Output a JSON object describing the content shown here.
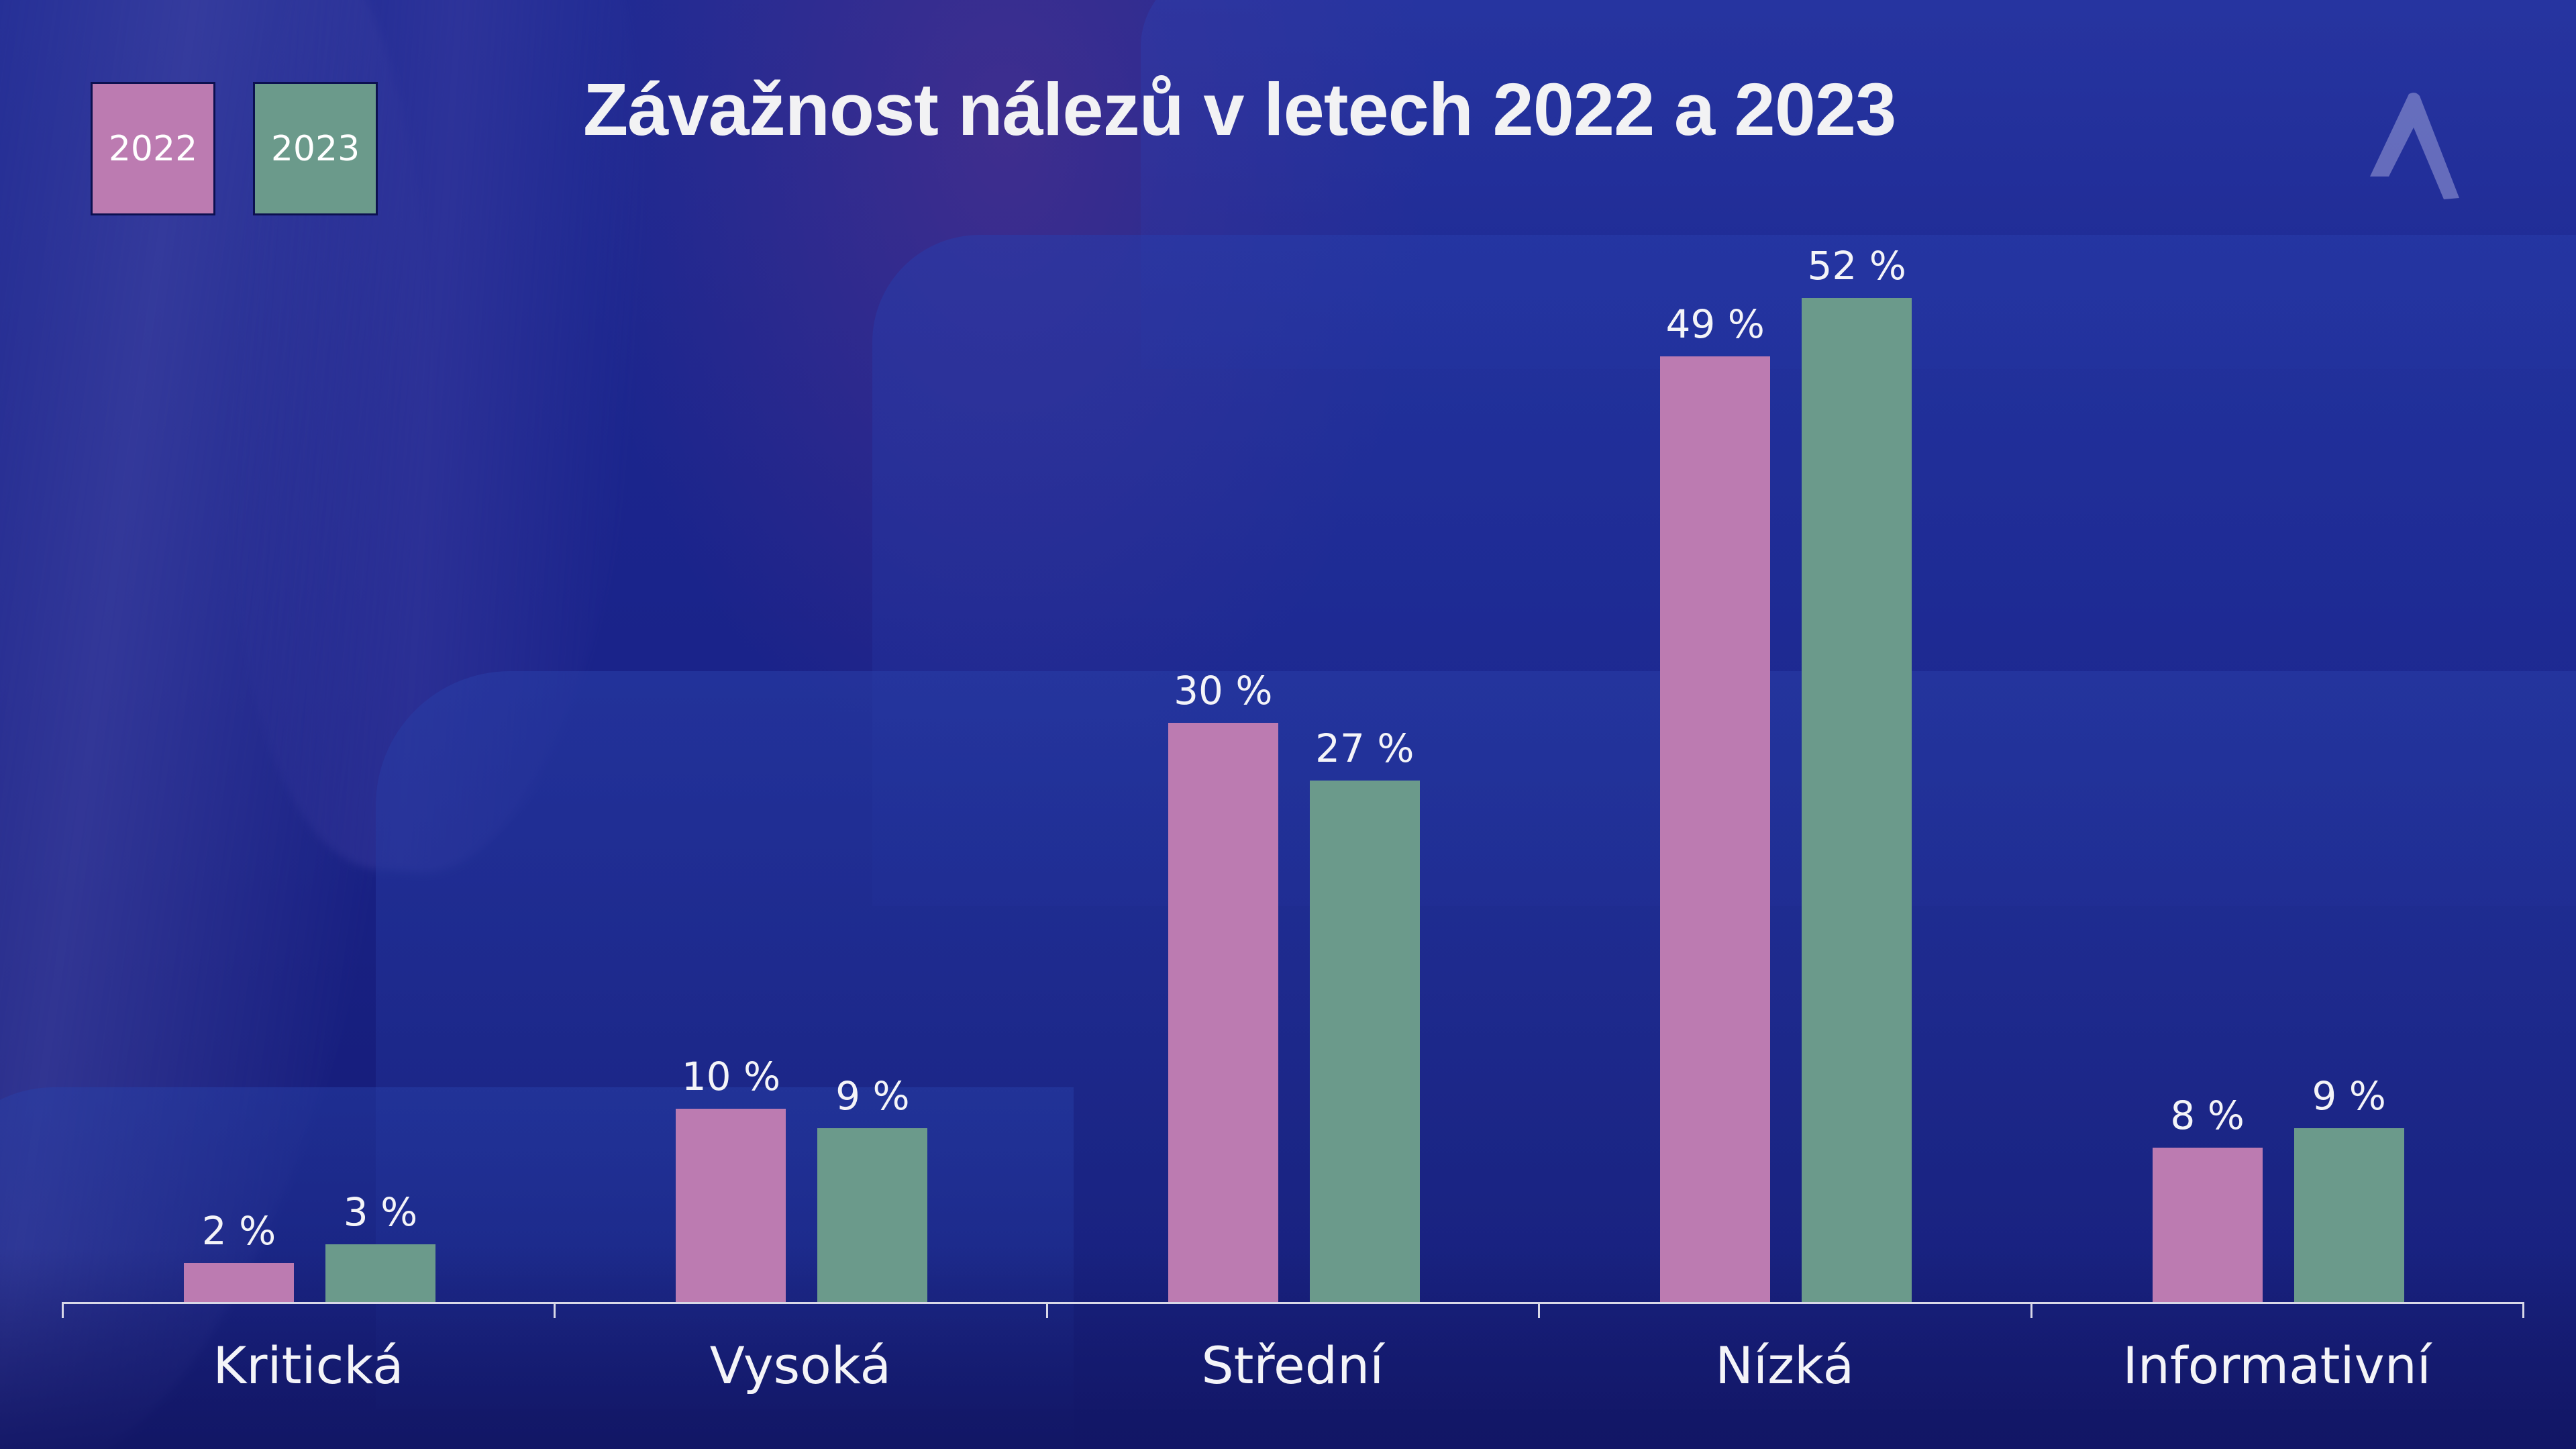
{
  "title": "Závažnost nálezů v letech 2022 a 2023",
  "logo": "caret-logo-icon",
  "legend": [
    {
      "label": "2022",
      "color": "#bc7bb1"
    },
    {
      "label": "2023",
      "color": "#6b9a8b"
    }
  ],
  "colors": {
    "series_2022": "#bc7bb1",
    "series_2023": "#6b9a8b",
    "background": "#1a238a",
    "text": "#f4f4f8",
    "axis": "#d8d8e8"
  },
  "categories": [
    {
      "label": "Kritická",
      "v2022": "2 %",
      "v2023": "3 %"
    },
    {
      "label": "Vysoká",
      "v2022": "10 %",
      "v2023": "9 %"
    },
    {
      "label": "Střední",
      "v2022": "30 %",
      "v2023": "27 %"
    },
    {
      "label": "Nízká",
      "v2022": "49 %",
      "v2023": "52 %"
    },
    {
      "label": "Informativní",
      "v2022": "8 %",
      "v2023": "9 %"
    }
  ],
  "chart_data": {
    "type": "bar",
    "title": "Závažnost nálezů v letech 2022 a 2023",
    "categories": [
      "Kritická",
      "Vysoká",
      "Střední",
      "Nízká",
      "Informativní"
    ],
    "series": [
      {
        "name": "2022",
        "color": "#bc7bb1",
        "values": [
          2,
          10,
          30,
          49,
          8
        ]
      },
      {
        "name": "2023",
        "color": "#6b9a8b",
        "values": [
          3,
          9,
          27,
          52,
          9
        ]
      }
    ],
    "value_suffix": " %",
    "xlabel": "",
    "ylabel": "",
    "ylim": [
      0,
      60
    ],
    "grid": false,
    "y_axis_visible": false,
    "data_labels": true,
    "legend_position": "top-left"
  }
}
